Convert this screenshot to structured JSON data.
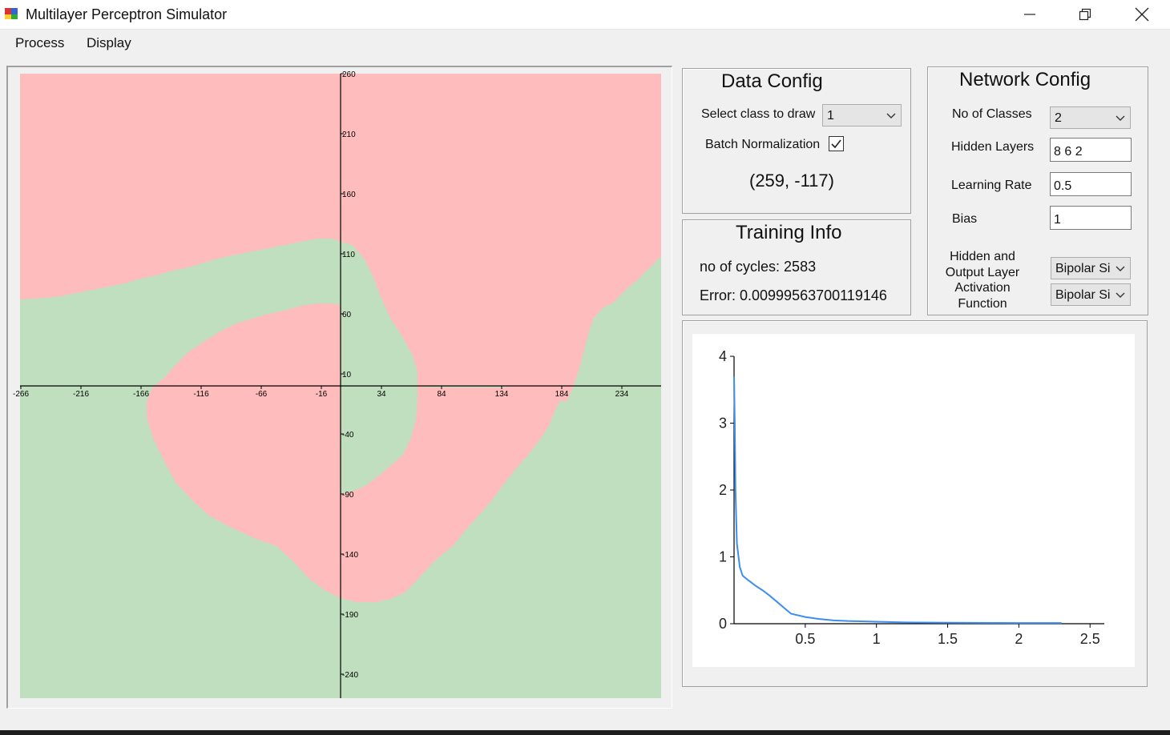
{
  "window": {
    "title": "Multilayer Perceptron Simulator",
    "icons": {
      "app": "app-icon",
      "minimize": "minimize-icon",
      "maximize": "restore-icon",
      "close": "close-icon"
    }
  },
  "menu": {
    "items": [
      "Process",
      "Display"
    ]
  },
  "data_config": {
    "title": "Data Config",
    "select_class_label": "Select class to draw",
    "select_class_value": "1",
    "batch_norm_label": "Batch Normalization",
    "batch_norm_checked": true,
    "cursor_readout": "(259, -117)"
  },
  "training_info": {
    "title": "Training Info",
    "cycles": "no of cycles: 2583",
    "error": "Error: 0.00999563700119146"
  },
  "network_config": {
    "title": "Network Config",
    "classes_label": "No of Classes",
    "classes_value": "2",
    "hidden_layers_label": "Hidden Layers",
    "hidden_layers_value": "8 6 2",
    "learning_rate_label": "Learning Rate",
    "learning_rate_value": "0.5",
    "bias_label": "Bias",
    "bias_value": "1",
    "activation_label_lines": [
      "Hidden and",
      "Output Layer",
      "Activation",
      "Function"
    ],
    "hidden_activation_value": "Bipolar Si",
    "output_activation_value": "Bipolar Si"
  },
  "decision_plot": {
    "class_colors": {
      "class_1": "#ffbcbc",
      "class_2": "#bfdfbf"
    },
    "x_ticks": [
      "-266",
      "-216",
      "-166",
      "-116",
      "-66",
      "-16",
      "34",
      "84",
      "134",
      "184",
      "234"
    ],
    "y_ticks": [
      "260",
      "210",
      "160",
      "110",
      "60",
      "10",
      "-40",
      "-90",
      "-140",
      "-190",
      "-240"
    ]
  },
  "chart_data": {
    "type": "line",
    "title": "",
    "xlabel": "",
    "ylabel": "",
    "xlim": [
      0,
      2.6
    ],
    "ylim": [
      0,
      4
    ],
    "x_ticks": [
      "0.5",
      "1",
      "1.5",
      "2",
      "2.5"
    ],
    "y_ticks": [
      "0",
      "1",
      "2",
      "3",
      "4"
    ],
    "grid": false,
    "line_color": "#3c8ef0",
    "series": [
      {
        "x": [
          0.0,
          0.005,
          0.01,
          0.02,
          0.04,
          0.06,
          0.1,
          0.15,
          0.2,
          0.25,
          0.3,
          0.35,
          0.4,
          0.5,
          0.6,
          0.7,
          0.8,
          1.0,
          1.2,
          1.5,
          2.0,
          2.3
        ],
        "y": [
          3.7,
          3.0,
          2.0,
          1.2,
          0.85,
          0.72,
          0.65,
          0.57,
          0.5,
          0.42,
          0.33,
          0.24,
          0.15,
          0.1,
          0.07,
          0.05,
          0.04,
          0.03,
          0.02,
          0.015,
          0.01,
          0.01
        ]
      }
    ]
  }
}
